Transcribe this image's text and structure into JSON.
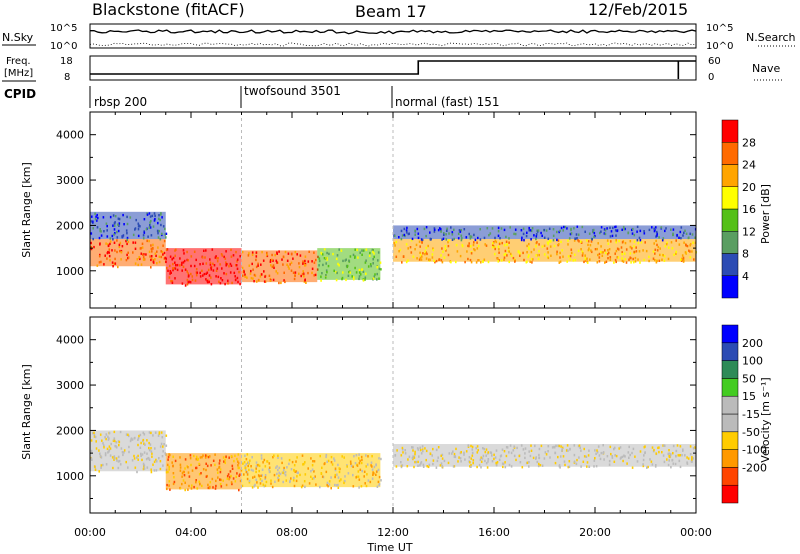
{
  "header": {
    "station": "Blackstone (fitACF)",
    "beam": "Beam 17",
    "date": "12/Feb/2015"
  },
  "summary_panels": {
    "nsky_label": "N.Sky",
    "nsearch_label": "N.Search",
    "nsky_ticks": [
      "10^5",
      "10^0"
    ],
    "nsearch_ticks": [
      "10^5",
      "10^0"
    ],
    "freq_label_line1": "Freq.",
    "freq_label_line2": "[MHz]",
    "freq_ticks": [
      "18",
      "8"
    ],
    "nave_label": "Nave",
    "nave_ticks": [
      "60",
      "0"
    ],
    "cpid_label": "CPID",
    "cpid_segments": [
      {
        "name": "rbsp 200",
        "start_h": 0
      },
      {
        "name": "twofsound 3501",
        "start_h": 6
      },
      {
        "name": "normal (fast) 151",
        "start_h": 12
      }
    ]
  },
  "colors": {
    "power": [
      "#0000ff",
      "#2c4cb4",
      "#5a9e62",
      "#55c018",
      "#ffff00",
      "#ffa500",
      "#ff6a00",
      "#ff0000"
    ],
    "velocity": [
      "#ff0000",
      "#ff4500",
      "#ff9900",
      "#ffcc00",
      "#bbbbbb",
      "#bbbbbb",
      "#44cc22",
      "#2e8b57",
      "#2c4cb4",
      "#0000ff"
    ],
    "ground_scatter": "#bbbbbb"
  },
  "chart_data": [
    {
      "type": "heatmap",
      "name": "power",
      "xlabel": "",
      "ylabel": "Slant Range [km]",
      "xlim": [
        0,
        24
      ],
      "ylim": [
        180,
        4500
      ],
      "yticks": [
        1000,
        2000,
        3000,
        4000
      ],
      "colorbar_label": "Power [dB]",
      "colorbar_ticks": [
        "4",
        "8",
        "12",
        "16",
        "20",
        "24",
        "28"
      ],
      "bands": [
        {
          "x0": 0.0,
          "x1": 3.0,
          "y0": 1100,
          "y1": 1700,
          "level": 6
        },
        {
          "x0": 0.0,
          "x1": 3.0,
          "y0": 1700,
          "y1": 2300,
          "level": 1
        },
        {
          "x0": 3.0,
          "x1": 6.0,
          "y0": 700,
          "y1": 1500,
          "level": 7
        },
        {
          "x0": 6.0,
          "x1": 9.0,
          "y0": 750,
          "y1": 1450,
          "level": 6
        },
        {
          "x0": 9.0,
          "x1": 11.5,
          "y0": 800,
          "y1": 1500,
          "level": 3
        },
        {
          "x0": 12.0,
          "x1": 24.0,
          "y0": 1200,
          "y1": 1700,
          "level": 5
        },
        {
          "x0": 12.0,
          "x1": 24.0,
          "y0": 1700,
          "y1": 2000,
          "level": 1
        }
      ]
    },
    {
      "type": "heatmap",
      "name": "velocity",
      "xlabel": "Time UT",
      "ylabel": "Slant Range [km]",
      "xlim": [
        0,
        24
      ],
      "ylim": [
        180,
        4500
      ],
      "xticks": [
        "00:00",
        "04:00",
        "08:00",
        "12:00",
        "16:00",
        "20:00",
        "00:00"
      ],
      "yticks": [
        1000,
        2000,
        3000,
        4000
      ],
      "colorbar_label": "Velocity [m s⁻¹]",
      "colorbar_ticks": [
        "200",
        "100",
        "50",
        "15",
        "-15",
        "-50",
        "-100",
        "-200"
      ],
      "bands": [
        {
          "x0": 0.0,
          "x1": 3.0,
          "y0": 1100,
          "y1": 2000,
          "level": 4
        },
        {
          "x0": 3.0,
          "x1": 6.0,
          "y0": 700,
          "y1": 1500,
          "level": 2
        },
        {
          "x0": 6.0,
          "x1": 11.5,
          "y0": 750,
          "y1": 1500,
          "level": 3
        },
        {
          "x0": 12.0,
          "x1": 24.0,
          "y0": 1200,
          "y1": 1700,
          "level": 4
        }
      ]
    }
  ]
}
